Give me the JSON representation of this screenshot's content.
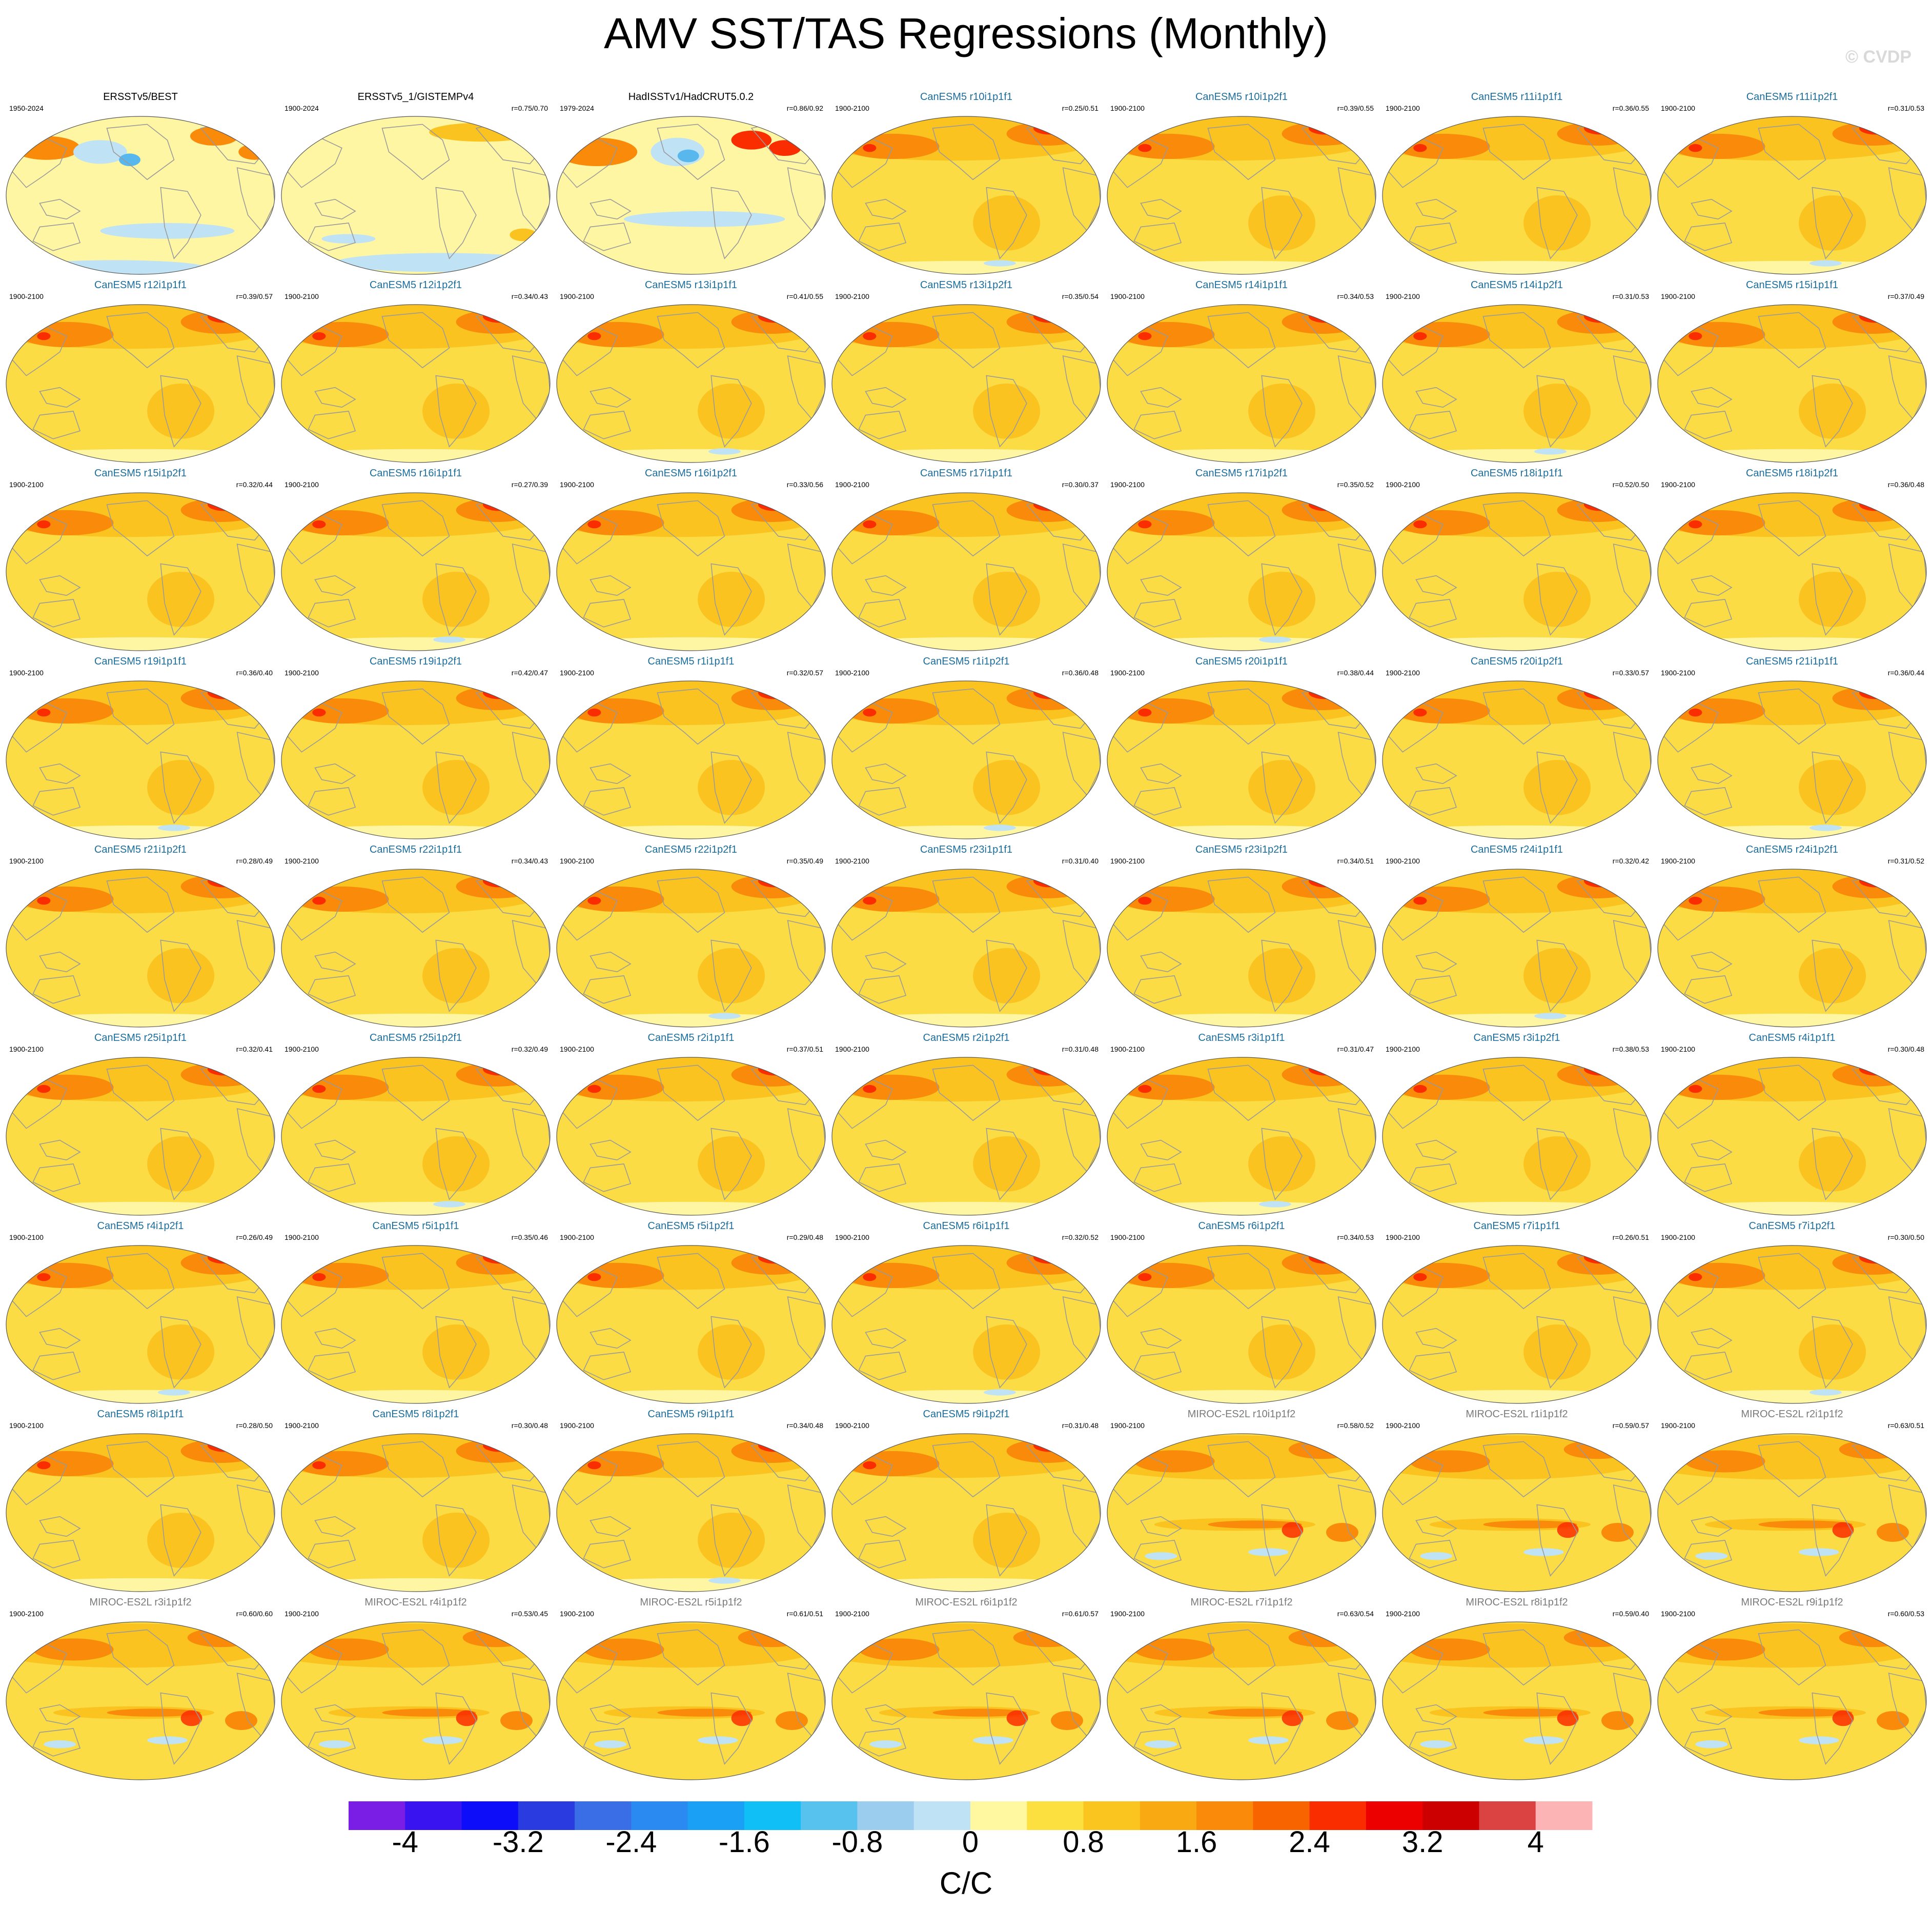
{
  "title": "AMV SST/TAS Regressions (Monthly)",
  "watermark": "© CVDP",
  "colorbar": {
    "label": "C/C",
    "tick_labels": [
      "-4",
      "-3.2",
      "-2.4",
      "-1.6",
      "-0.8",
      "0",
      "0.8",
      "1.6",
      "2.4",
      "3.2",
      "4"
    ],
    "colors": [
      "#7a1ee6",
      "#3a14f0",
      "#0d0dfa",
      "#2a3ce0",
      "#3a6ee6",
      "#2a8af2",
      "#1aa0f5",
      "#10bff5",
      "#58c2ee",
      "#9acdee",
      "#bfe2f5",
      "#fff8a0",
      "#fbe040",
      "#fbc520",
      "#f9a912",
      "#f98a0a",
      "#f86400",
      "#fa2d00",
      "#ed0000",
      "#cc0000",
      "#db4242",
      "#fcb4b4"
    ]
  },
  "map_colors": {
    "ocean_base_model": "#fbdc44",
    "ocean_base_obs": "#fff6a4",
    "warm_moderate": "#fbc320",
    "warm_strong": "#f98a0a",
    "warm_peak": "#fa2d00",
    "cool_light": "#bfe2f5",
    "cool_moderate": "#58b8ee",
    "land": "#ffffff",
    "coast": "#9a9a9a",
    "title_obs": "#000000",
    "title_canesm": "#1a6d9c",
    "title_miroc": "#7a7a7a"
  },
  "panels": [
    {
      "title": "ERSSTv5/BEST",
      "years": "1950-2024",
      "corr": "",
      "kind": "obs1"
    },
    {
      "title": "ERSSTv5_1/GISTEMPv4",
      "years": "1900-2024",
      "corr": "r=0.75/0.70",
      "kind": "obs2"
    },
    {
      "title": "HadISSTv1/HadCRUT5.0.2",
      "years": "1979-2024",
      "corr": "r=0.86/0.92",
      "kind": "obs3"
    },
    {
      "title": "CanESM5 r10i1p1f1",
      "years": "1900-2100",
      "corr": "r=0.25/0.51",
      "kind": "canesm"
    },
    {
      "title": "CanESM5 r10i1p2f1",
      "years": "1900-2100",
      "corr": "r=0.39/0.55",
      "kind": "canesm"
    },
    {
      "title": "CanESM5 r11i1p1f1",
      "years": "1900-2100",
      "corr": "r=0.36/0.55",
      "kind": "canesm"
    },
    {
      "title": "CanESM5 r11i1p2f1",
      "years": "1900-2100",
      "corr": "r=0.31/0.53",
      "kind": "canesm"
    },
    {
      "title": "CanESM5 r12i1p1f1",
      "years": "1900-2100",
      "corr": "r=0.39/0.57",
      "kind": "canesm"
    },
    {
      "title": "CanESM5 r12i1p2f1",
      "years": "1900-2100",
      "corr": "r=0.34/0.43",
      "kind": "canesm"
    },
    {
      "title": "CanESM5 r13i1p1f1",
      "years": "1900-2100",
      "corr": "r=0.41/0.55",
      "kind": "canesm"
    },
    {
      "title": "CanESM5 r13i1p2f1",
      "years": "1900-2100",
      "corr": "r=0.35/0.54",
      "kind": "canesm"
    },
    {
      "title": "CanESM5 r14i1p1f1",
      "years": "1900-2100",
      "corr": "r=0.34/0.53",
      "kind": "canesm"
    },
    {
      "title": "CanESM5 r14i1p2f1",
      "years": "1900-2100",
      "corr": "r=0.31/0.53",
      "kind": "canesm"
    },
    {
      "title": "CanESM5 r15i1p1f1",
      "years": "1900-2100",
      "corr": "r=0.37/0.49",
      "kind": "canesm"
    },
    {
      "title": "CanESM5 r15i1p2f1",
      "years": "1900-2100",
      "corr": "r=0.32/0.44",
      "kind": "canesm"
    },
    {
      "title": "CanESM5 r16i1p1f1",
      "years": "1900-2100",
      "corr": "r=0.27/0.39",
      "kind": "canesm"
    },
    {
      "title": "CanESM5 r16i1p2f1",
      "years": "1900-2100",
      "corr": "r=0.33/0.56",
      "kind": "canesm"
    },
    {
      "title": "CanESM5 r17i1p1f1",
      "years": "1900-2100",
      "corr": "r=0.30/0.37",
      "kind": "canesm"
    },
    {
      "title": "CanESM5 r17i1p2f1",
      "years": "1900-2100",
      "corr": "r=0.35/0.52",
      "kind": "canesm"
    },
    {
      "title": "CanESM5 r18i1p1f1",
      "years": "1900-2100",
      "corr": "r=0.52/0.50",
      "kind": "canesm"
    },
    {
      "title": "CanESM5 r18i1p2f1",
      "years": "1900-2100",
      "corr": "r=0.36/0.48",
      "kind": "canesm"
    },
    {
      "title": "CanESM5 r19i1p1f1",
      "years": "1900-2100",
      "corr": "r=0.36/0.40",
      "kind": "canesm"
    },
    {
      "title": "CanESM5 r19i1p2f1",
      "years": "1900-2100",
      "corr": "r=0.42/0.47",
      "kind": "canesm"
    },
    {
      "title": "CanESM5 r1i1p1f1",
      "years": "1900-2100",
      "corr": "r=0.32/0.57",
      "kind": "canesm"
    },
    {
      "title": "CanESM5 r1i1p2f1",
      "years": "1900-2100",
      "corr": "r=0.36/0.48",
      "kind": "canesm"
    },
    {
      "title": "CanESM5 r20i1p1f1",
      "years": "1900-2100",
      "corr": "r=0.38/0.44",
      "kind": "canesm"
    },
    {
      "title": "CanESM5 r20i1p2f1",
      "years": "1900-2100",
      "corr": "r=0.33/0.57",
      "kind": "canesm"
    },
    {
      "title": "CanESM5 r21i1p1f1",
      "years": "1900-2100",
      "corr": "r=0.36/0.44",
      "kind": "canesm"
    },
    {
      "title": "CanESM5 r21i1p2f1",
      "years": "1900-2100",
      "corr": "r=0.28/0.49",
      "kind": "canesm"
    },
    {
      "title": "CanESM5 r22i1p1f1",
      "years": "1900-2100",
      "corr": "r=0.34/0.43",
      "kind": "canesm"
    },
    {
      "title": "CanESM5 r22i1p2f1",
      "years": "1900-2100",
      "corr": "r=0.35/0.49",
      "kind": "canesm"
    },
    {
      "title": "CanESM5 r23i1p1f1",
      "years": "1900-2100",
      "corr": "r=0.31/0.40",
      "kind": "canesm"
    },
    {
      "title": "CanESM5 r23i1p2f1",
      "years": "1900-2100",
      "corr": "r=0.34/0.51",
      "kind": "canesm"
    },
    {
      "title": "CanESM5 r24i1p1f1",
      "years": "1900-2100",
      "corr": "r=0.32/0.42",
      "kind": "canesm"
    },
    {
      "title": "CanESM5 r24i1p2f1",
      "years": "1900-2100",
      "corr": "r=0.31/0.52",
      "kind": "canesm"
    },
    {
      "title": "CanESM5 r25i1p1f1",
      "years": "1900-2100",
      "corr": "r=0.32/0.41",
      "kind": "canesm"
    },
    {
      "title": "CanESM5 r25i1p2f1",
      "years": "1900-2100",
      "corr": "r=0.32/0.49",
      "kind": "canesm"
    },
    {
      "title": "CanESM5 r2i1p1f1",
      "years": "1900-2100",
      "corr": "r=0.37/0.51",
      "kind": "canesm"
    },
    {
      "title": "CanESM5 r2i1p2f1",
      "years": "1900-2100",
      "corr": "r=0.31/0.48",
      "kind": "canesm"
    },
    {
      "title": "CanESM5 r3i1p1f1",
      "years": "1900-2100",
      "corr": "r=0.31/0.47",
      "kind": "canesm"
    },
    {
      "title": "CanESM5 r3i1p2f1",
      "years": "1900-2100",
      "corr": "r=0.38/0.53",
      "kind": "canesm"
    },
    {
      "title": "CanESM5 r4i1p1f1",
      "years": "1900-2100",
      "corr": "r=0.30/0.48",
      "kind": "canesm"
    },
    {
      "title": "CanESM5 r4i1p2f1",
      "years": "1900-2100",
      "corr": "r=0.26/0.49",
      "kind": "canesm"
    },
    {
      "title": "CanESM5 r5i1p1f1",
      "years": "1900-2100",
      "corr": "r=0.35/0.46",
      "kind": "canesm"
    },
    {
      "title": "CanESM5 r5i1p2f1",
      "years": "1900-2100",
      "corr": "r=0.29/0.48",
      "kind": "canesm"
    },
    {
      "title": "CanESM5 r6i1p1f1",
      "years": "1900-2100",
      "corr": "r=0.32/0.52",
      "kind": "canesm"
    },
    {
      "title": "CanESM5 r6i1p2f1",
      "years": "1900-2100",
      "corr": "r=0.34/0.53",
      "kind": "canesm"
    },
    {
      "title": "CanESM5 r7i1p1f1",
      "years": "1900-2100",
      "corr": "r=0.26/0.51",
      "kind": "canesm"
    },
    {
      "title": "CanESM5 r7i1p2f1",
      "years": "1900-2100",
      "corr": "r=0.30/0.50",
      "kind": "canesm"
    },
    {
      "title": "CanESM5 r8i1p1f1",
      "years": "1900-2100",
      "corr": "r=0.28/0.50",
      "kind": "canesm"
    },
    {
      "title": "CanESM5 r8i1p2f1",
      "years": "1900-2100",
      "corr": "r=0.30/0.48",
      "kind": "canesm"
    },
    {
      "title": "CanESM5 r9i1p1f1",
      "years": "1900-2100",
      "corr": "r=0.34/0.48",
      "kind": "canesm"
    },
    {
      "title": "CanESM5 r9i1p2f1",
      "years": "1900-2100",
      "corr": "r=0.31/0.48",
      "kind": "canesm"
    },
    {
      "title": "MIROC-ES2L r10i1p1f2",
      "years": "1900-2100",
      "corr": "r=0.58/0.52",
      "kind": "miroc"
    },
    {
      "title": "MIROC-ES2L r1i1p1f2",
      "years": "1900-2100",
      "corr": "r=0.59/0.57",
      "kind": "miroc"
    },
    {
      "title": "MIROC-ES2L r2i1p1f2",
      "years": "1900-2100",
      "corr": "r=0.63/0.51",
      "kind": "miroc"
    },
    {
      "title": "MIROC-ES2L r3i1p1f2",
      "years": "1900-2100",
      "corr": "r=0.60/0.60",
      "kind": "miroc"
    },
    {
      "title": "MIROC-ES2L r4i1p1f2",
      "years": "1900-2100",
      "corr": "r=0.53/0.45",
      "kind": "miroc"
    },
    {
      "title": "MIROC-ES2L r5i1p1f2",
      "years": "1900-2100",
      "corr": "r=0.61/0.51",
      "kind": "miroc"
    },
    {
      "title": "MIROC-ES2L r6i1p1f2",
      "years": "1900-2100",
      "corr": "r=0.61/0.57",
      "kind": "miroc"
    },
    {
      "title": "MIROC-ES2L r7i1p1f2",
      "years": "1900-2100",
      "corr": "r=0.63/0.54",
      "kind": "miroc"
    },
    {
      "title": "MIROC-ES2L r8i1p1f2",
      "years": "1900-2100",
      "corr": "r=0.59/0.40",
      "kind": "miroc"
    },
    {
      "title": "MIROC-ES2L r9i1p1f2",
      "years": "1900-2100",
      "corr": "r=0.60/0.53",
      "kind": "miroc"
    }
  ]
}
